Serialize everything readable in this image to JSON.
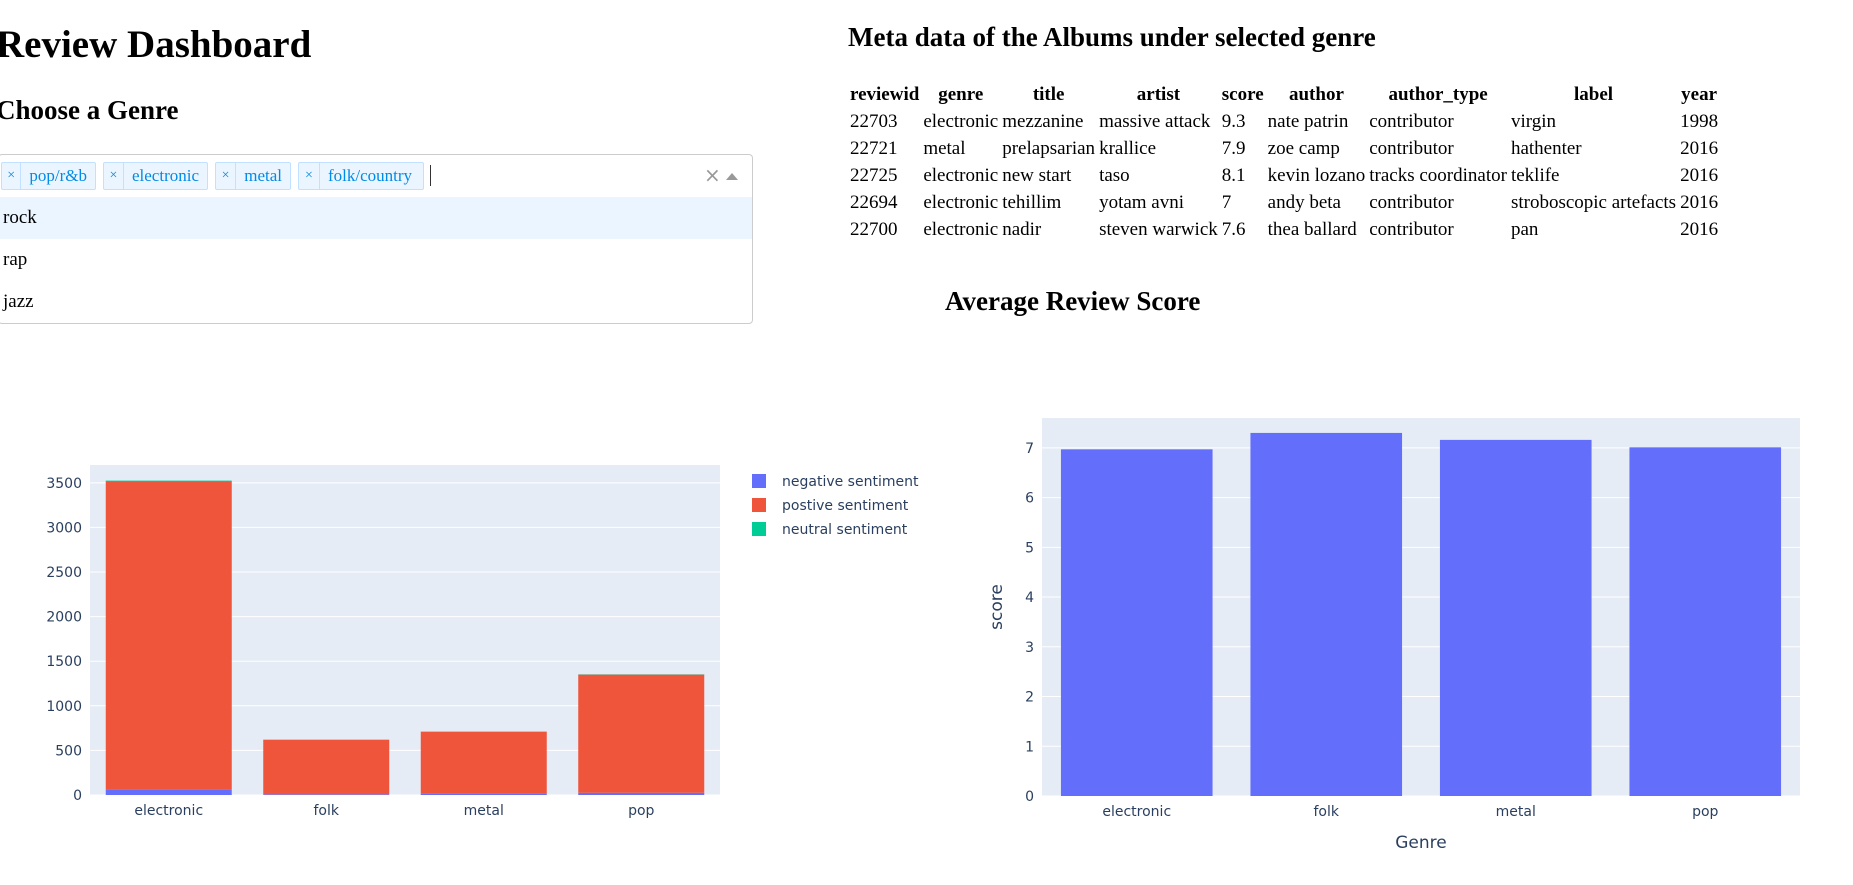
{
  "header": {
    "title": "Review Dashboard",
    "choose_label": "Choose a Genre"
  },
  "dropdown": {
    "selected": [
      "pop/r&b",
      "electronic",
      "metal",
      "folk/country"
    ],
    "options": [
      "rock",
      "rap",
      "jazz"
    ],
    "focused_option": "rock"
  },
  "meta_table": {
    "title": "Meta data of the Albums under selected genre",
    "columns": [
      "reviewid",
      "genre",
      "title",
      "artist",
      "score",
      "author",
      "author_type",
      "label",
      "year"
    ],
    "rows": [
      [
        "22703",
        "electronic",
        "mezzanine",
        "massive attack",
        "9.3",
        "nate patrin",
        "contributor",
        "virgin",
        "1998"
      ],
      [
        "22721",
        "metal",
        "prelapsarian",
        "krallice",
        "7.9",
        "zoe camp",
        "contributor",
        "hathenter",
        "2016"
      ],
      [
        "22725",
        "electronic",
        "new start",
        "taso",
        "8.1",
        "kevin lozano",
        "tracks coordinator",
        "teklife",
        "2016"
      ],
      [
        "22694",
        "electronic",
        "tehillim",
        "yotam avni",
        "7",
        "andy beta",
        "contributor",
        "stroboscopic artefacts",
        "2016"
      ],
      [
        "22700",
        "electronic",
        "nadir",
        "steven warwick",
        "7.6",
        "thea ballard",
        "contributor",
        "pan",
        "2016"
      ]
    ]
  },
  "avg_title": "Average Review Score",
  "colors": {
    "negative": "#636efa",
    "positive": "#ef553b",
    "neutral": "#00cc96",
    "plot_bg": "#e5ecf6",
    "bar_single": "#636efa",
    "tag_bg": "#ebf5ff",
    "tag_text": "#008be6"
  },
  "chart_data": [
    {
      "type": "bar",
      "stacked": true,
      "categories": [
        "electronic",
        "folk",
        "metal",
        "pop"
      ],
      "series": [
        {
          "name": "negative sentiment",
          "values": [
            60,
            8,
            20,
            25
          ]
        },
        {
          "name": "postive sentiment",
          "values": [
            3460,
            612,
            690,
            1325
          ]
        },
        {
          "name": "neutral sentiment",
          "values": [
            5,
            1,
            2,
            3
          ]
        }
      ],
      "ylim": [
        0,
        3700
      ],
      "yticks": [
        0,
        500,
        1000,
        1500,
        2000,
        2500,
        3000,
        3500
      ],
      "legend": "top-right",
      "grid": true
    },
    {
      "type": "bar",
      "categories": [
        "electronic",
        "folk",
        "metal",
        "pop"
      ],
      "values": [
        6.97,
        7.3,
        7.16,
        7.01
      ],
      "xlabel": "Genre",
      "ylabel": "score",
      "ylim": [
        0,
        7.6
      ],
      "yticks": [
        0,
        1,
        2,
        3,
        4,
        5,
        6,
        7
      ],
      "grid": true
    }
  ]
}
